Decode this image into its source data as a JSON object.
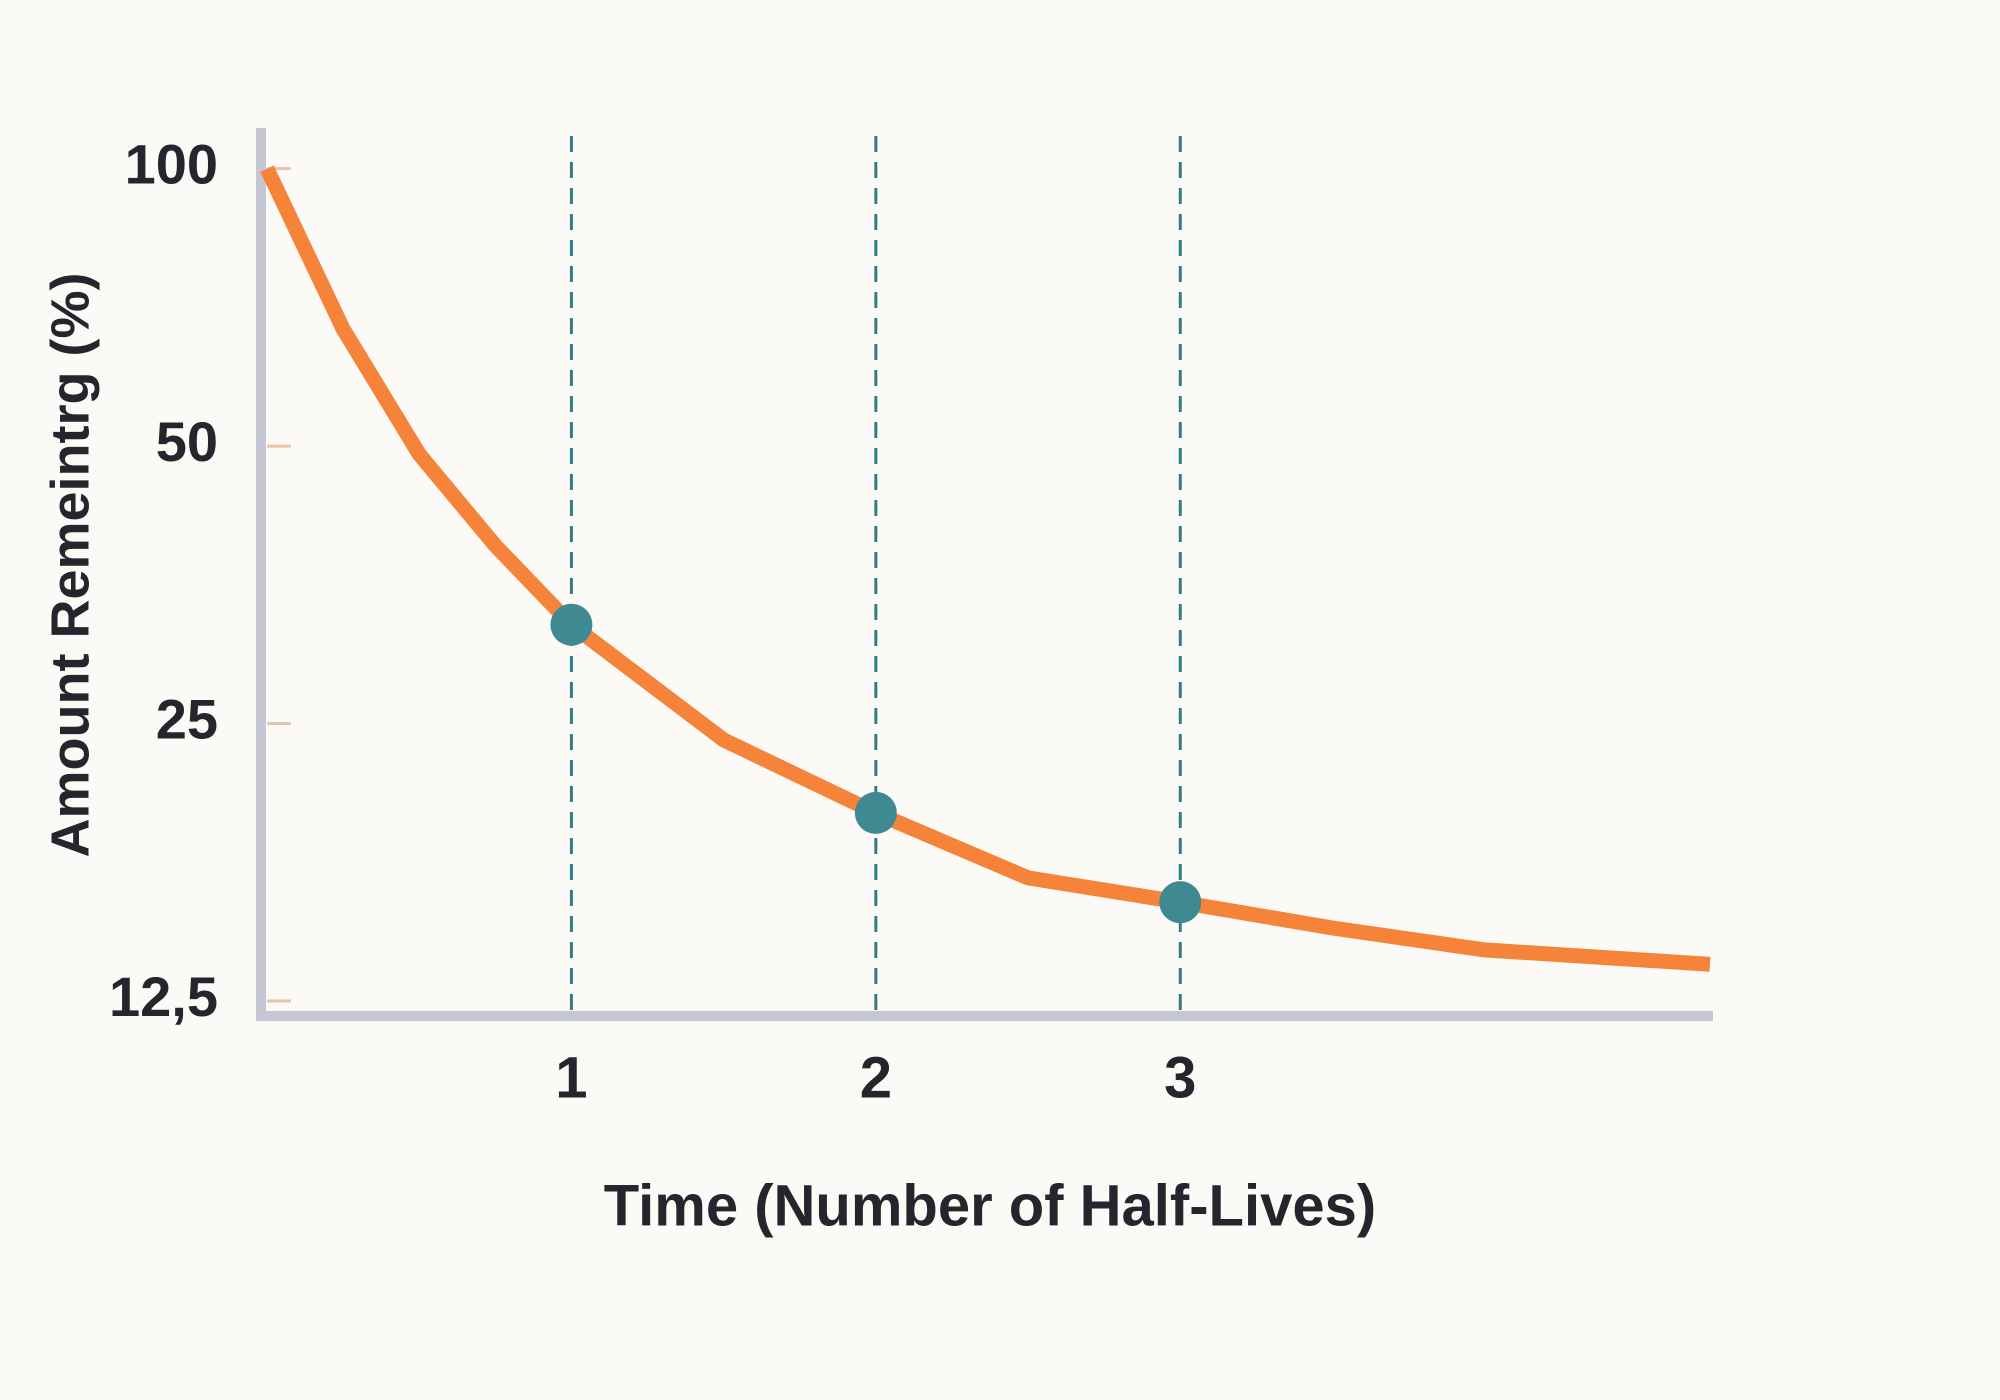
{
  "chart_data": {
    "type": "line",
    "y_label": "Amount Remeintrg (%)",
    "x_label": "Time (Number of Half-Lives)",
    "yscale": "log",
    "xlim": [
      0,
      4.75
    ],
    "ylim": [
      12.1,
      110.7
    ],
    "xticks": [
      1,
      2,
      3
    ],
    "yticks": [
      100,
      50,
      25,
      {
        "value": 12.5,
        "label": "12,5"
      }
    ],
    "grid": true,
    "series": [
      {
        "color": "#f5843a",
        "markers": false,
        "x": [
          0,
          0.25,
          0.5,
          0.75,
          1,
          1.5,
          2,
          2.5,
          3,
          3.5,
          4,
          4.74
        ],
        "values": [
          100,
          67,
          49,
          39,
          32,
          24,
          20,
          17,
          16,
          15,
          14.2,
          13.7
        ]
      },
      {
        "color": "#3f8a92",
        "markers": true,
        "line": false,
        "x": [
          1,
          2,
          3
        ],
        "values": [
          32,
          20,
          16
        ]
      }
    ]
  }
}
